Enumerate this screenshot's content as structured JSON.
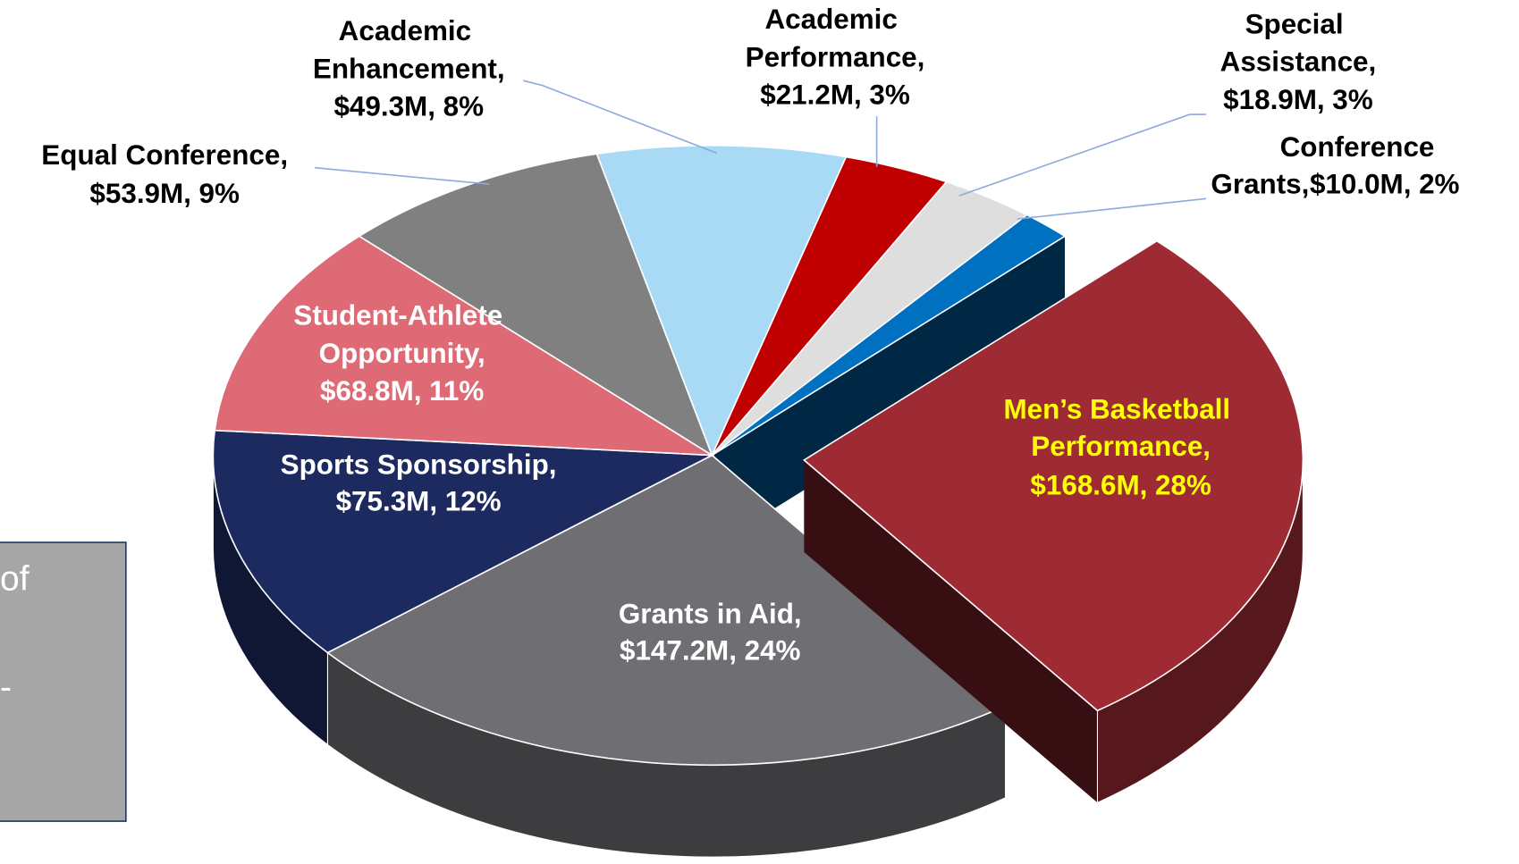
{
  "chart_data": {
    "type": "pie",
    "categories": [
      "Men’s Basketball Performance,",
      "Grants in Aid,",
      "Sports Sponsorship,",
      "Student-Athlete Opportunity,",
      "Equal Conference,",
      "Academic Enhancement,",
      "Academic Performance,",
      "Special Assistance,",
      "Conference Grants,"
    ],
    "values": [
      168.6,
      147.2,
      75.3,
      68.8,
      53.9,
      49.3,
      21.2,
      18.9,
      10.0
    ],
    "value_labels": [
      "$168.6M,",
      "$147.2M,",
      "$75.3M,",
      "$68.8M,",
      "$53.9M,",
      "$49.3M,",
      "$21.2M,",
      "$18.9M,",
      "$10.0M,"
    ],
    "percents": [
      28,
      24,
      12,
      11,
      9,
      8,
      3,
      3,
      2
    ],
    "percent_labels": [
      "28%",
      "24%",
      "12%",
      "11%",
      "9%",
      "8%",
      "3%",
      "3%",
      "2%"
    ],
    "colors": [
      "#9e2b34",
      "#6f6e73",
      "#1c2a60",
      "#dd6a75",
      "#808080",
      "#a8daf6",
      "#c00000",
      "#dedede",
      "#0070c0"
    ],
    "explode": [
      true,
      false,
      false,
      false,
      false,
      false,
      false,
      false,
      false
    ]
  },
  "side_box": {
    "lines": [
      "of",
      "-"
    ]
  }
}
